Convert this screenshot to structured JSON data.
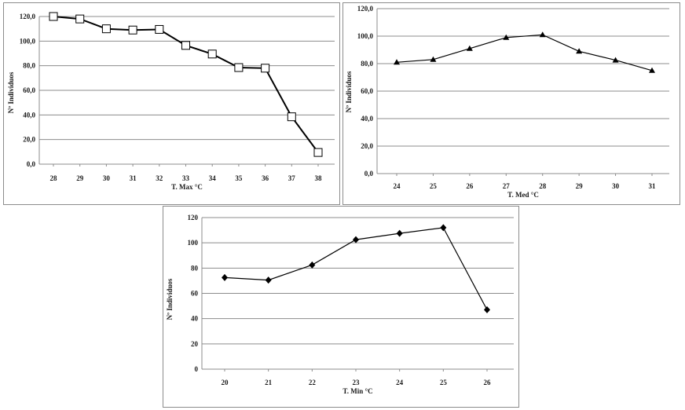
{
  "chart_data": [
    {
      "type": "line",
      "xlabel": "T. Max  °C",
      "ylabel": "Nº Individuos",
      "categories": [
        "28",
        "29",
        "30",
        "31",
        "32",
        "33",
        "34",
        "35",
        "36",
        "37",
        "38"
      ],
      "series": [
        {
          "values": [
            120,
            118,
            110,
            109,
            109.5,
            96.5,
            89.5,
            78.5,
            78,
            38.5,
            9.5
          ],
          "marker": "open-square",
          "color": "#000000"
        }
      ],
      "ylim": [
        0,
        120
      ],
      "yticks": [
        "0,0",
        "20,0",
        "40,0",
        "60,0",
        "80,0",
        "100,0",
        "120,0"
      ],
      "grid": true,
      "legend": "none"
    },
    {
      "type": "line",
      "xlabel": "T. Med  °C",
      "ylabel": "Nº Individuos",
      "categories": [
        "24",
        "25",
        "26",
        "27",
        "28",
        "29",
        "30",
        "31"
      ],
      "series": [
        {
          "values": [
            81,
            83,
            91,
            99,
            101,
            89,
            82.5,
            75
          ],
          "marker": "filled-triangle",
          "color": "#000000"
        }
      ],
      "ylim": [
        0,
        120
      ],
      "yticks": [
        "0,0",
        "20,0",
        "40,0",
        "60,0",
        "80,0",
        "100,0",
        "120,0"
      ],
      "grid": true,
      "legend": "none"
    },
    {
      "type": "line",
      "xlabel": "T. Min °C",
      "ylabel": "Nº Individuos",
      "categories": [
        "20",
        "21",
        "22",
        "23",
        "24",
        "25",
        "26"
      ],
      "series": [
        {
          "values": [
            72.5,
            70.5,
            82.5,
            102.5,
            107.5,
            112,
            47
          ],
          "marker": "filled-diamond",
          "color": "#000000"
        }
      ],
      "ylim": [
        0,
        120
      ],
      "yticks": [
        "0",
        "20",
        "40",
        "60",
        "80",
        "100",
        "120"
      ],
      "grid": true,
      "legend": "none"
    }
  ]
}
